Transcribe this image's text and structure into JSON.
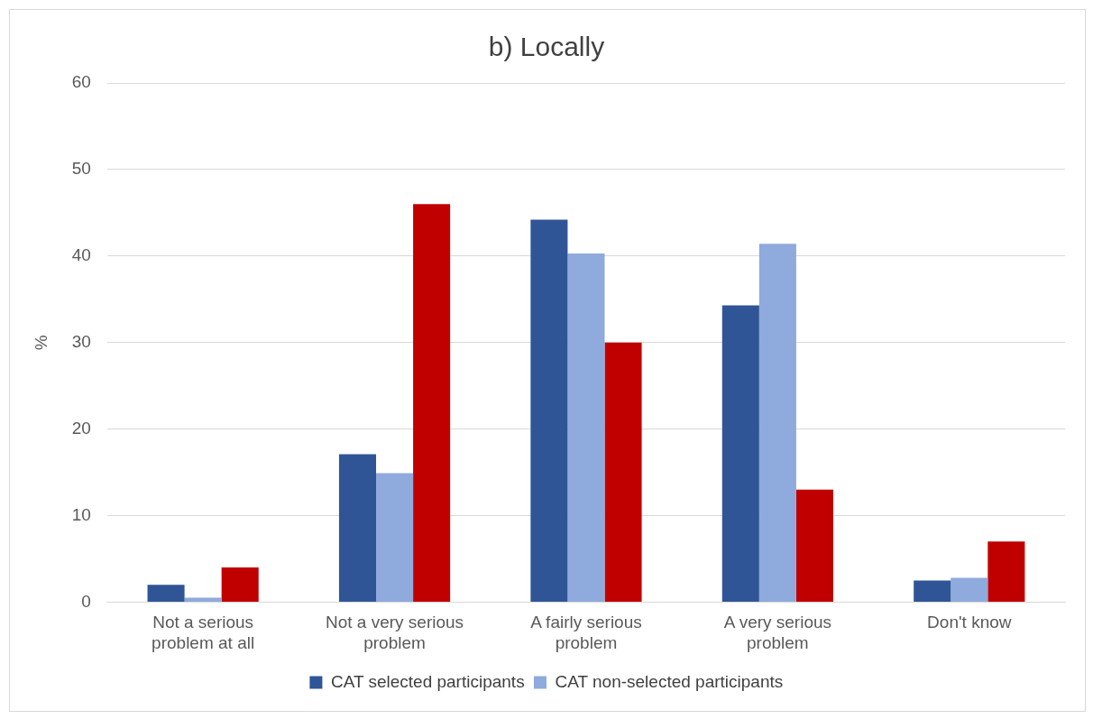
{
  "chart_data": {
    "type": "bar",
    "title": "b) Locally",
    "ylabel": "%",
    "categories": [
      "Not a serious problem at all",
      "Not a very serious problem",
      "A fairly serious problem",
      "A very serious problem",
      "Don't know"
    ],
    "series": [
      {
        "name": "CAT selected participants",
        "color": "#2f5597",
        "values": [
          2.0,
          17.1,
          44.2,
          34.3,
          2.5
        ]
      },
      {
        "name": "CAT non-selected participants",
        "color": "#8faadc",
        "values": [
          0.5,
          14.9,
          40.3,
          41.4,
          2.8
        ]
      },
      {
        "color": "#c00000",
        "values": [
          4.0,
          46.0,
          30.0,
          13.0,
          7.0
        ]
      }
    ],
    "ylim": [
      0,
      60
    ],
    "yticks": [
      0,
      10,
      20,
      30,
      40,
      50,
      60
    ],
    "grid": "y",
    "legend": "bottom"
  }
}
